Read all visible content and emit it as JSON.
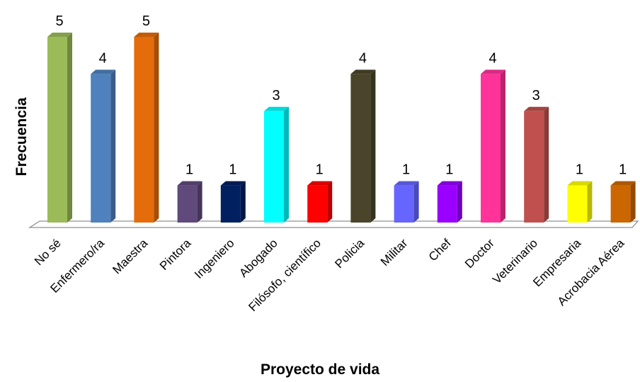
{
  "chart_data": {
    "type": "bar",
    "title": "",
    "xlabel": "Proyecto de vida",
    "ylabel": "Frecuencia",
    "categories": [
      "No sé",
      "Enfermero/ra",
      "Maestra",
      "Pintora",
      "Ingeniero",
      "Abogado",
      "Filósofo, científico",
      "Policia",
      "Militar",
      "Chef",
      "Doctor",
      "Veterinario",
      "Empresaria",
      "Acrobacia Aérea"
    ],
    "values": [
      5,
      4,
      5,
      1,
      1,
      3,
      1,
      4,
      1,
      1,
      4,
      3,
      1,
      1
    ],
    "ylim": [
      0,
      5
    ],
    "grid": false,
    "legend": "none",
    "colors": [
      "#9BBB59",
      "#4F81BD",
      "#E46C0A",
      "#604A7B",
      "#002060",
      "#00FFFF",
      "#FF0000",
      "#4A452A",
      "#6666FF",
      "#9900FF",
      "#FF3399",
      "#C0504D",
      "#FFFF00",
      "#CC6600"
    ]
  }
}
